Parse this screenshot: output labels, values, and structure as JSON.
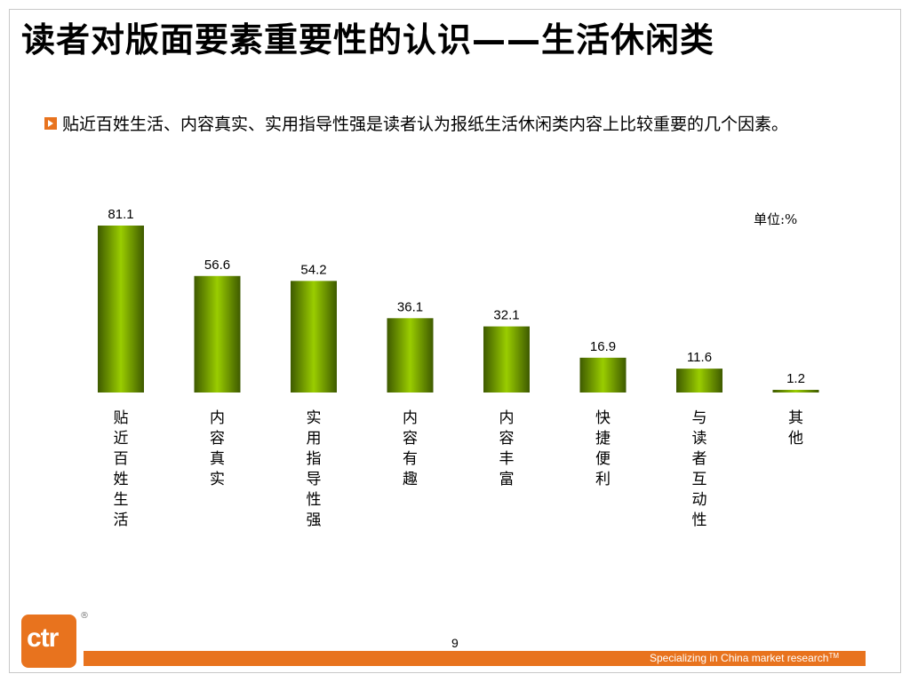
{
  "title": "读者对版面要素重要性的认识——生活休闲类",
  "bullet": "贴近百姓生活、内容真实、实用指导性强是读者认为报纸生活休闲类内容上比较重要的几个因素。",
  "unit_label": "单位:%",
  "logo": "ctr",
  "registered": "®",
  "page_number": "9",
  "footer": {
    "text": "Specializing in China market research",
    "tm": "TM"
  },
  "colors": {
    "accent": "#e8731e",
    "bar_dark": "#3e5a00",
    "bar_light": "#9acd00"
  },
  "chart_data": {
    "type": "bar",
    "categories": [
      "贴近百姓生活",
      "内容真实",
      "实用指导性强",
      "内容有趣",
      "内容丰富",
      "快捷便利",
      "与读者互动性",
      "其他"
    ],
    "values": [
      81.1,
      56.6,
      54.2,
      36.1,
      32.1,
      16.9,
      11.6,
      1.2
    ],
    "value_labels": [
      "81.1",
      "56.6",
      "54.2",
      "36.1",
      "32.1",
      "16.9",
      "11.6",
      "1.2"
    ],
    "title": "",
    "xlabel": "",
    "ylabel": "",
    "grid": false,
    "legend": "none"
  }
}
